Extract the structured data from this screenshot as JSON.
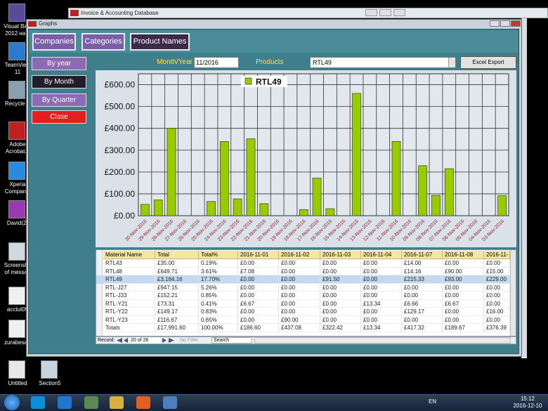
{
  "desktop_icons": [
    [
      "Visual Basi",
      "2012 на п"
    ],
    [
      "TeamView",
      "11"
    ],
    [
      "Recycle B"
    ],
    [
      "Adobe",
      "Acrobat..."
    ],
    [
      "Xperia",
      "Companio"
    ],
    [
      "David(2)"
    ],
    [
      "Screensho",
      "of messag"
    ],
    [
      "acctut09"
    ],
    [
      "zurabesart"
    ],
    [
      "Untitled"
    ],
    [
      "Section5"
    ]
  ],
  "background_window": {
    "title": "Invoice & Accounting Database"
  },
  "window": {
    "title": "Graphs",
    "tabs": [
      "Companies",
      "Categories",
      "Product Names"
    ],
    "side_buttons": [
      "By year",
      "By Month",
      "By Quarter",
      "Close"
    ],
    "filter": {
      "month_label": "Month/Year",
      "month_value": "11/2016",
      "products_label": "Products",
      "products_value": "RTL49",
      "export_button": "Excel Export"
    },
    "table": {
      "columns": [
        "Material Name",
        "Total",
        "Total%",
        "2016-11-01",
        "2016-11-02",
        "2016-11-03",
        "2016-11-04",
        "2016-11-07",
        "2016-11-08",
        "2016-11-"
      ],
      "rows": [
        [
          "RTL43",
          "£35.00",
          "0.19%",
          "£0.00",
          "£0.00",
          "£0.00",
          "£0.00",
          "£14.00",
          "£0.00",
          "£0.00"
        ],
        [
          "RTL48",
          "£649.71",
          "3.61%",
          "£7.08",
          "£0.00",
          "£0.00",
          "£0.00",
          "£14.16",
          "£90.00",
          "£15.00"
        ],
        [
          "RTL49",
          "£3,184.16",
          "17.70%",
          "£0.00",
          "£0.00",
          "£91.50",
          "£0.00",
          "£215.33",
          "£93.00",
          "£229.00"
        ],
        [
          "RTL-J27",
          "£947.15",
          "5.26%",
          "£0.00",
          "£0.00",
          "£0.00",
          "£0.00",
          "£0.00",
          "£0.00",
          "£0.00"
        ],
        [
          "RTL-J33",
          "£152.21",
          "0.85%",
          "£0.00",
          "£0.00",
          "£0.00",
          "£0.00",
          "£0.00",
          "£0.00",
          "£0.00"
        ],
        [
          "RTL-Y21",
          "£73.31",
          "0.41%",
          "£6.67",
          "£0.00",
          "£0.00",
          "£13.34",
          "£6.66",
          "£6.67",
          "£0.00"
        ],
        [
          "RTL-Y22",
          "£149.17",
          "0.83%",
          "£0.00",
          "£0.00",
          "£0.00",
          "£0.00",
          "£129.17",
          "£0.00",
          "£16.00"
        ],
        [
          "RTL-Y23",
          "£116.67",
          "0.65%",
          "£0.00",
          "£90.00",
          "£0.00",
          "£0.00",
          "£0.00",
          "£0.00",
          "£0.00"
        ],
        [
          "Totals",
          "£17,991.60",
          "100.00%",
          "£186.60",
          "£437.08",
          "£322.42",
          "£13.34",
          "£417.32",
          "£189.67",
          "£376.39"
        ]
      ]
    },
    "navigation": {
      "record_label": "Record:",
      "position": "20 of 26",
      "filter": "No Filter",
      "search": "Search"
    }
  },
  "chart_data": {
    "type": "bar",
    "categories": [
      "30-Nov-2016",
      "29-Nov-2016",
      "28-Nov-2016",
      "27-Nov-2016",
      "26-Nov-2016",
      "25-Nov-2016",
      "24-Nov-2016",
      "23-Nov-2016",
      "22-Nov-2016",
      "21-Nov-2016",
      "20-Nov-2016",
      "19-Nov-2016",
      "18-Nov-2016",
      "17-Nov-2016",
      "16-Nov-2016",
      "15-Nov-2016",
      "14-Nov-2016",
      "13-Nov-2016",
      "12-Nov-2016",
      "11-Nov-2016",
      "10-Nov-2016",
      "09-Nov-2016",
      "08-Nov-2016",
      "07-Nov-2016",
      "06-Nov-2016",
      "05-Nov-2016",
      "04-Nov-2016",
      "03-Nov-2016"
    ],
    "series": [
      {
        "name": "RTL49",
        "color": "#99cc00",
        "values": [
          52,
          72,
          400,
          0,
          0,
          65,
          340,
          77,
          352,
          55,
          0,
          0,
          28,
          172,
          32,
          0,
          560,
          0,
          0,
          340,
          0,
          229,
          93,
          215.33,
          0,
          0,
          0,
          91.5
        ]
      }
    ],
    "ylim": [
      0,
      650
    ],
    "yticks": [
      {
        "value": 0,
        "label": "£0.00"
      },
      {
        "value": 100,
        "label": "£100.00"
      },
      {
        "value": 200,
        "label": "£200.00"
      },
      {
        "value": 300,
        "label": "£300.00"
      },
      {
        "value": 400,
        "label": "£400.00"
      },
      {
        "value": 500,
        "label": "£500.00"
      },
      {
        "value": 600,
        "label": "£600.00"
      }
    ],
    "grid": true,
    "legend": "top"
  },
  "taskbar": {
    "language": "EN",
    "time": "15:12",
    "date": "2016-12-10"
  }
}
